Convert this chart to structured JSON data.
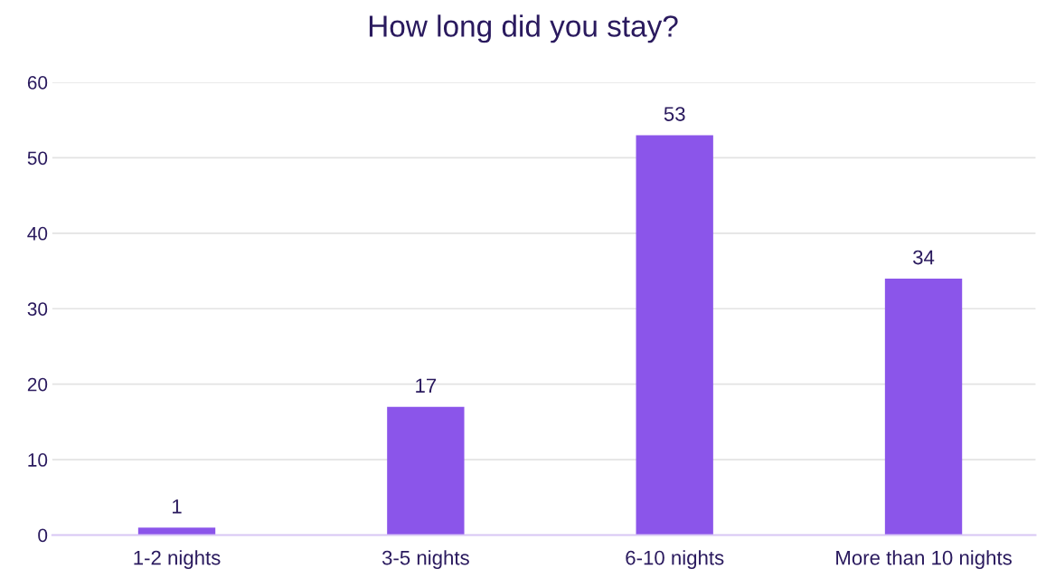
{
  "chart_data": {
    "type": "bar",
    "title": "How long did you stay?",
    "categories": [
      "1-2 nights",
      "3-5 nights",
      "6-10 nights",
      "More than 10 nights"
    ],
    "values": [
      1,
      17,
      53,
      34
    ],
    "color": "#8b55ea",
    "ylim": [
      0,
      60
    ],
    "yticks": [
      0,
      10,
      20,
      30,
      40,
      50,
      60
    ],
    "grid": "y",
    "data_labels": true
  }
}
